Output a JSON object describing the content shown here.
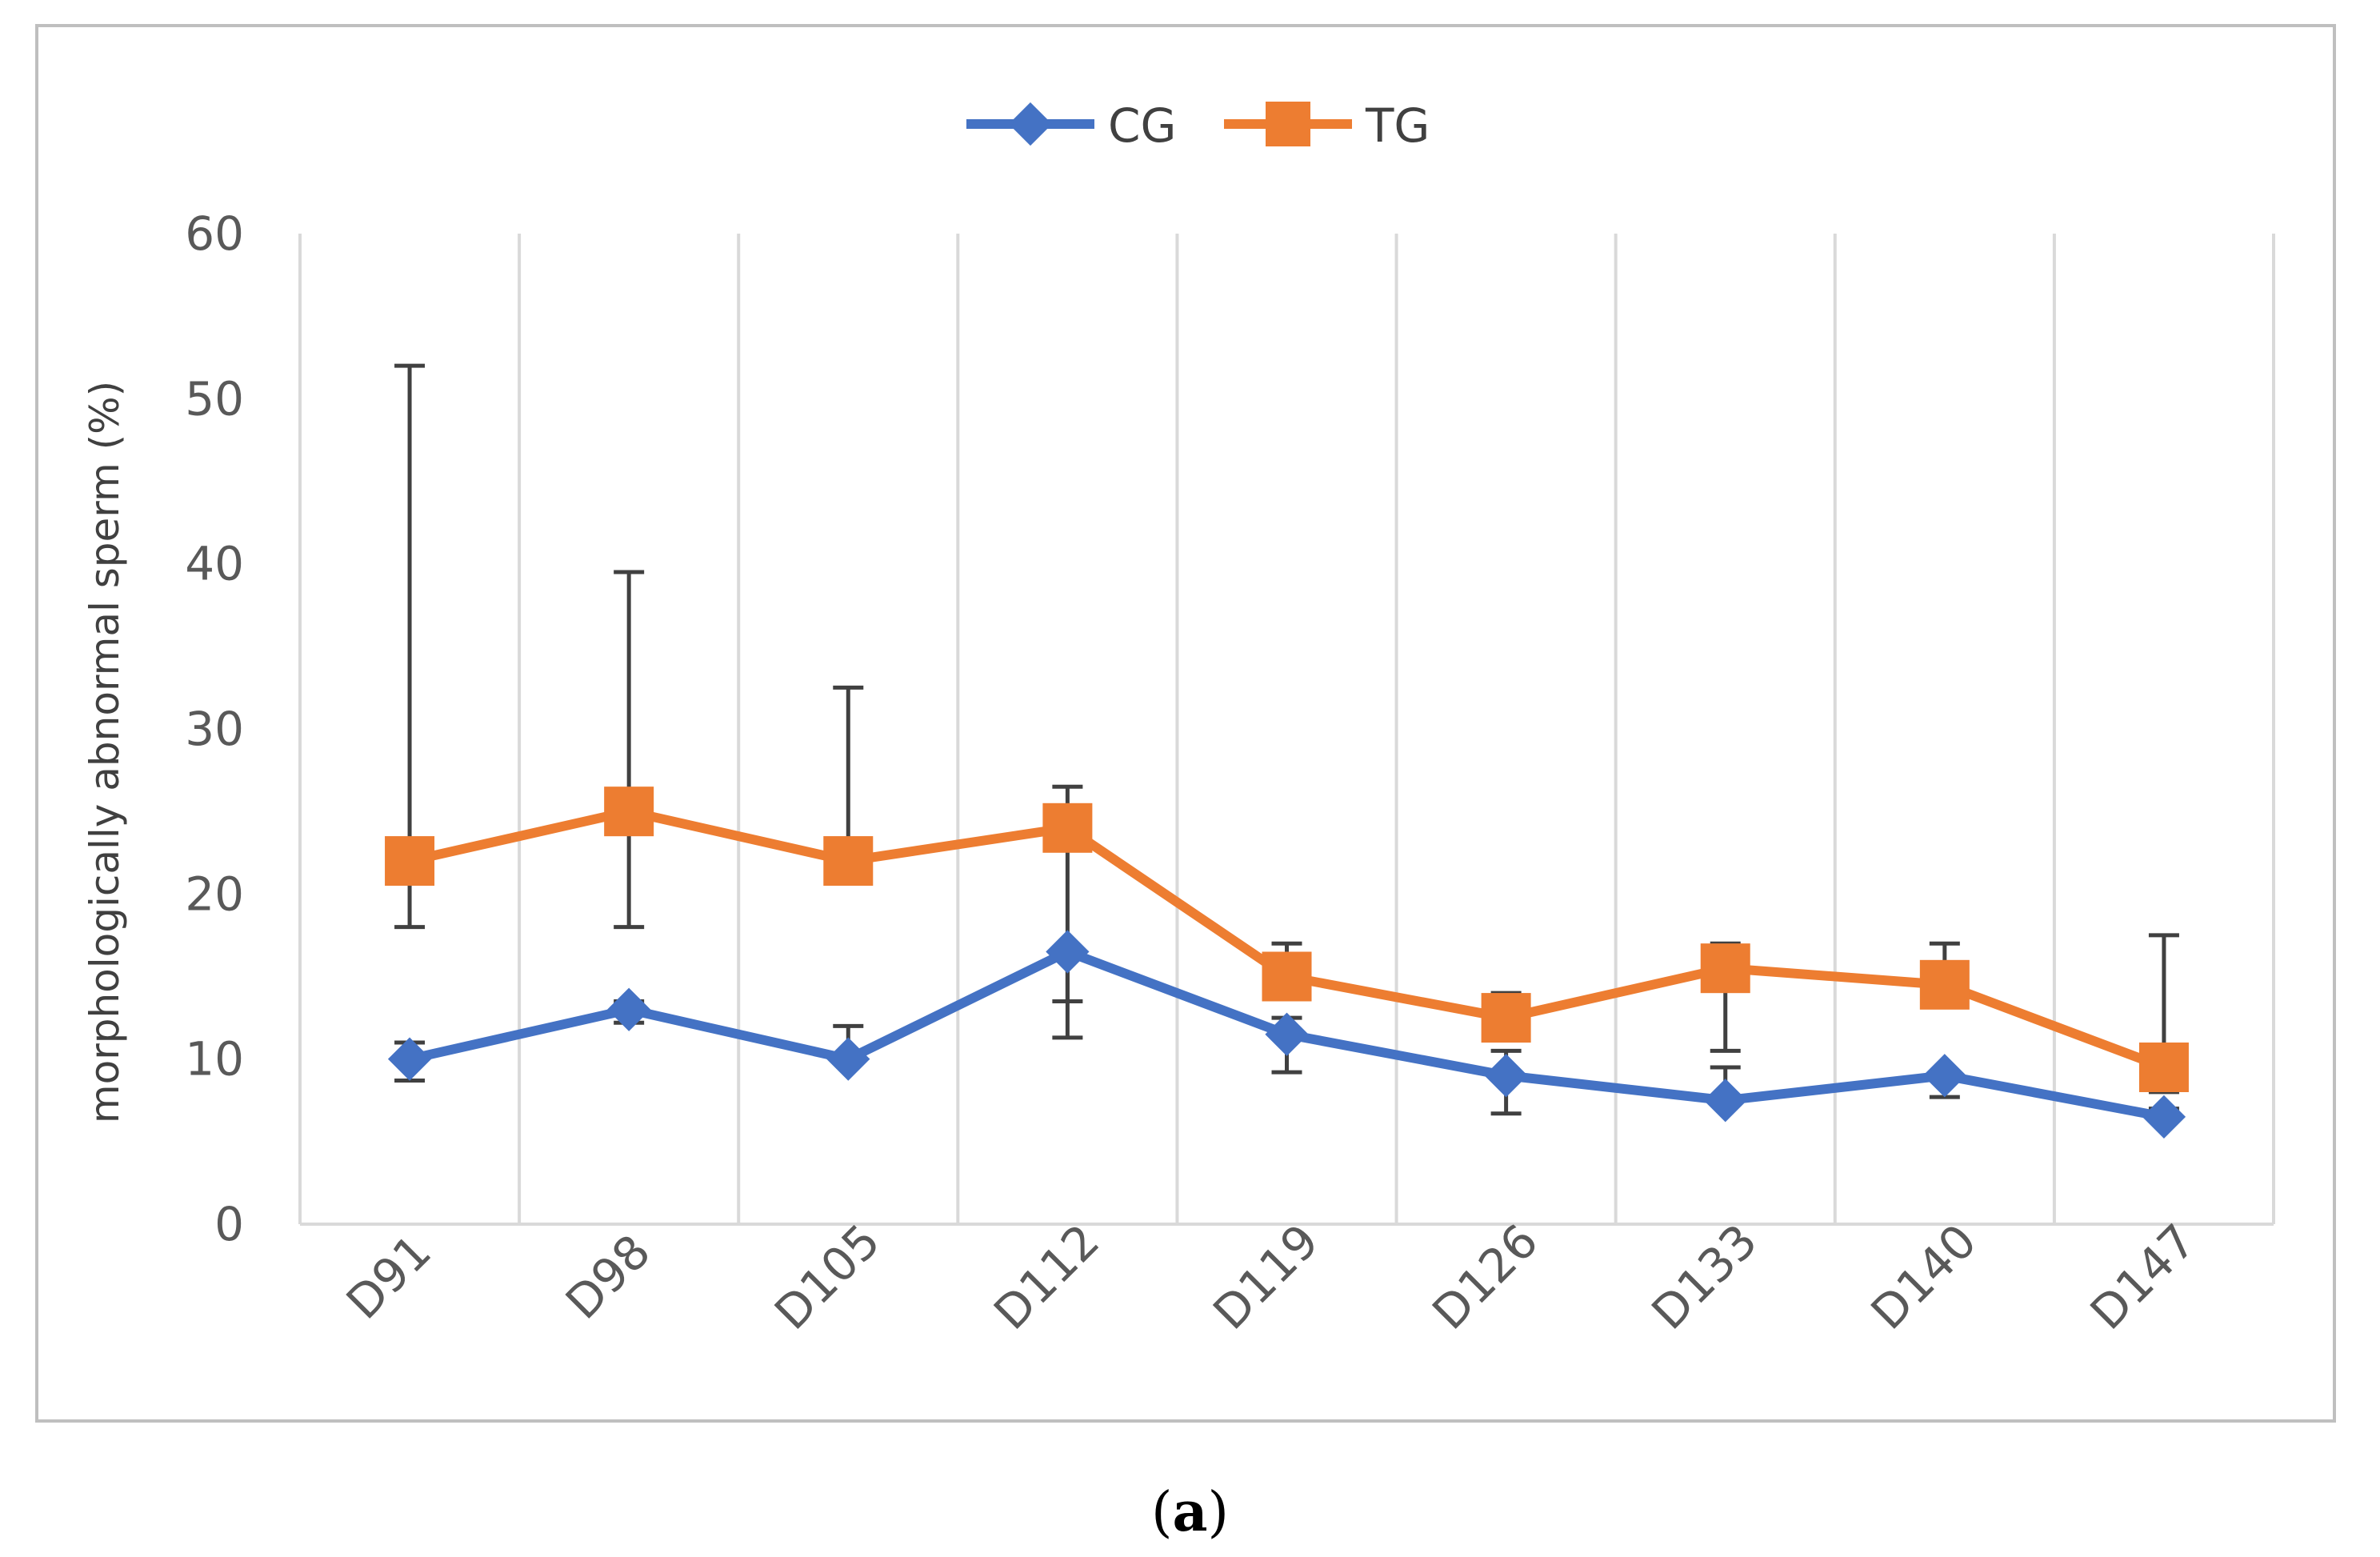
{
  "chart_data": {
    "type": "line",
    "categories": [
      "D91",
      "D98",
      "D105",
      "D112",
      "D119",
      "D126",
      "D133",
      "D140",
      "D147"
    ],
    "series": [
      {
        "name": "CG",
        "color": "#4472C4",
        "marker": "diamond",
        "values": [
          10,
          13,
          10,
          16.5,
          11.5,
          9,
          7.5,
          9,
          6.5
        ],
        "err_upper": [
          11,
          13.5,
          12,
          16.5,
          12.5,
          10.5,
          9.5,
          9,
          7
        ],
        "err_lower": [
          8.7,
          12.2,
          10,
          11.3,
          9.2,
          6.7,
          7.5,
          7.7,
          6.5
        ]
      },
      {
        "name": "TG",
        "color": "#ED7D31",
        "marker": "square",
        "values": [
          22,
          25,
          22,
          24,
          15,
          12.5,
          15.5,
          14.5,
          9.5
        ],
        "err_upper": [
          52,
          39.5,
          32.5,
          26.5,
          17,
          14,
          17,
          17,
          17.5
        ],
        "err_lower": [
          18,
          18,
          22,
          13.5,
          15,
          12.5,
          10.5,
          14.5,
          8
        ]
      }
    ],
    "title": "",
    "xlabel": "",
    "ylabel": "morphologically abnormal sperm (%)",
    "ylim": [
      0,
      60
    ],
    "yticks": [
      0,
      10,
      20,
      30,
      40,
      50,
      60
    ],
    "grid": "vertical",
    "legend": "top-center"
  },
  "caption": {
    "open": "(",
    "label": "a",
    "close": ")"
  }
}
